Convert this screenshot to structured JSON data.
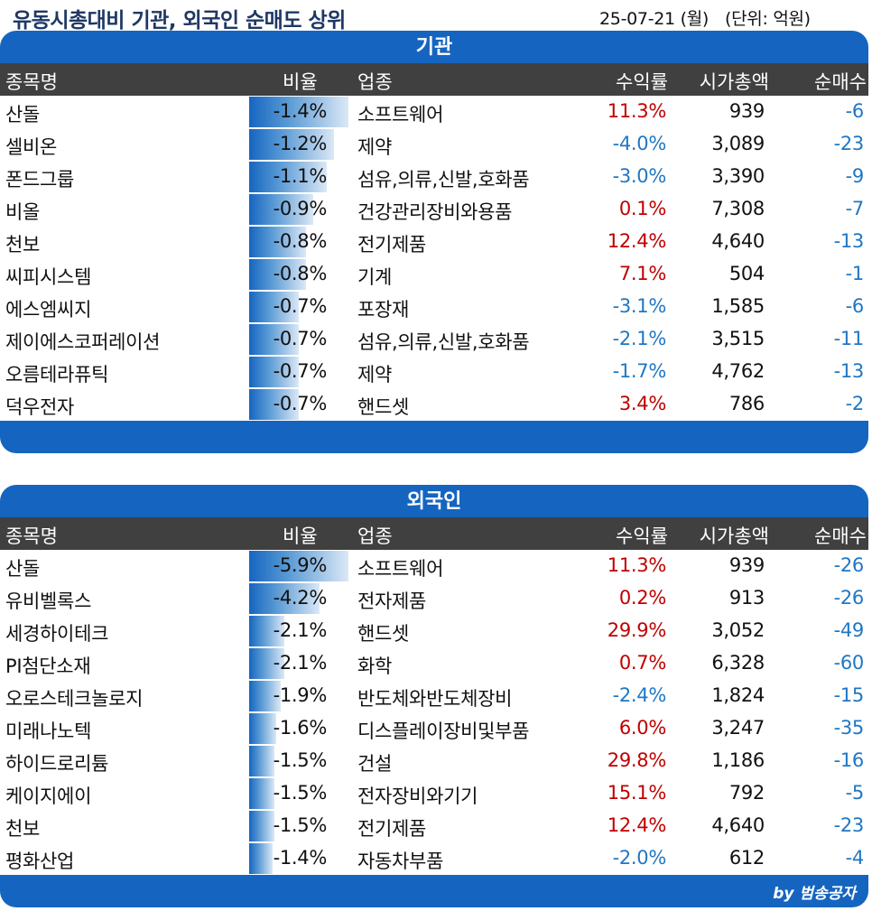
{
  "header": {
    "title": "유동시총대비 기관, 외국인 순매도 상위",
    "date": "25-07-21 (월)",
    "unit": "(단위: 억원)"
  },
  "columns": {
    "name": "종목명",
    "ratio": "비율",
    "industry": "업종",
    "return": "수익률",
    "market_cap": "시가총액",
    "net": "순매수"
  },
  "colors": {
    "panel_blue": "#1565c0",
    "header_gray": "#404040",
    "positive_red": "#c00000",
    "negative_blue": "#1f77c4"
  },
  "institution": {
    "label": "기관",
    "rows": [
      {
        "name": "산돌",
        "ratio": "-1.4%",
        "industry": "소프트웨어",
        "ret": "11.3%",
        "cap": "939",
        "net": "-6"
      },
      {
        "name": "셀비온",
        "ratio": "-1.2%",
        "industry": "제약",
        "ret": "-4.0%",
        "cap": "3,089",
        "net": "-23"
      },
      {
        "name": "폰드그룹",
        "ratio": "-1.1%",
        "industry": "섬유,의류,신발,호화품",
        "ret": "-3.0%",
        "cap": "3,390",
        "net": "-9"
      },
      {
        "name": "비올",
        "ratio": "-0.9%",
        "industry": "건강관리장비와용품",
        "ret": "0.1%",
        "cap": "7,308",
        "net": "-7"
      },
      {
        "name": "천보",
        "ratio": "-0.8%",
        "industry": "전기제품",
        "ret": "12.4%",
        "cap": "4,640",
        "net": "-13"
      },
      {
        "name": "씨피시스템",
        "ratio": "-0.8%",
        "industry": "기계",
        "ret": "7.1%",
        "cap": "504",
        "net": "-1"
      },
      {
        "name": "에스엠씨지",
        "ratio": "-0.7%",
        "industry": "포장재",
        "ret": "-3.1%",
        "cap": "1,585",
        "net": "-6"
      },
      {
        "name": "제이에스코퍼레이션",
        "ratio": "-0.7%",
        "industry": "섬유,의류,신발,호화품",
        "ret": "-2.1%",
        "cap": "3,515",
        "net": "-11"
      },
      {
        "name": "오름테라퓨틱",
        "ratio": "-0.7%",
        "industry": "제약",
        "ret": "-1.7%",
        "cap": "4,762",
        "net": "-13"
      },
      {
        "name": "덕우전자",
        "ratio": "-0.7%",
        "industry": "핸드셋",
        "ret": "3.4%",
        "cap": "786",
        "net": "-2"
      }
    ]
  },
  "foreign": {
    "label": "외국인",
    "rows": [
      {
        "name": "산돌",
        "ratio": "-5.9%",
        "industry": "소프트웨어",
        "ret": "11.3%",
        "cap": "939",
        "net": "-26"
      },
      {
        "name": "유비벨록스",
        "ratio": "-4.2%",
        "industry": "전자제품",
        "ret": "0.2%",
        "cap": "913",
        "net": "-26"
      },
      {
        "name": "세경하이테크",
        "ratio": "-2.1%",
        "industry": "핸드셋",
        "ret": "29.9%",
        "cap": "3,052",
        "net": "-49"
      },
      {
        "name": "PI첨단소재",
        "ratio": "-2.1%",
        "industry": "화학",
        "ret": "0.7%",
        "cap": "6,328",
        "net": "-60"
      },
      {
        "name": "오로스테크놀로지",
        "ratio": "-1.9%",
        "industry": "반도체와반도체장비",
        "ret": "-2.4%",
        "cap": "1,824",
        "net": "-15"
      },
      {
        "name": "미래나노텍",
        "ratio": "-1.6%",
        "industry": "디스플레이장비및부품",
        "ret": "6.0%",
        "cap": "3,247",
        "net": "-35"
      },
      {
        "name": "하이드로리튬",
        "ratio": "-1.5%",
        "industry": "건설",
        "ret": "29.8%",
        "cap": "1,186",
        "net": "-16"
      },
      {
        "name": "케이지에이",
        "ratio": "-1.5%",
        "industry": "전자장비와기기",
        "ret": "15.1%",
        "cap": "792",
        "net": "-5"
      },
      {
        "name": "천보",
        "ratio": "-1.5%",
        "industry": "전기제품",
        "ret": "12.4%",
        "cap": "4,640",
        "net": "-23"
      },
      {
        "name": "평화산업",
        "ratio": "-1.4%",
        "industry": "자동차부품",
        "ret": "-2.0%",
        "cap": "612",
        "net": "-4"
      }
    ]
  },
  "footer": {
    "credit": "by 범송공자"
  }
}
